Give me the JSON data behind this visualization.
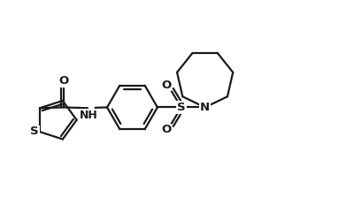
{
  "background_color": "#ffffff",
  "line_color": "#1a1a1a",
  "line_width": 1.6,
  "fig_width": 4.0,
  "fig_height": 2.24,
  "dpi": 100,
  "xlim": [
    0,
    10
  ],
  "ylim": [
    0,
    5.6
  ]
}
